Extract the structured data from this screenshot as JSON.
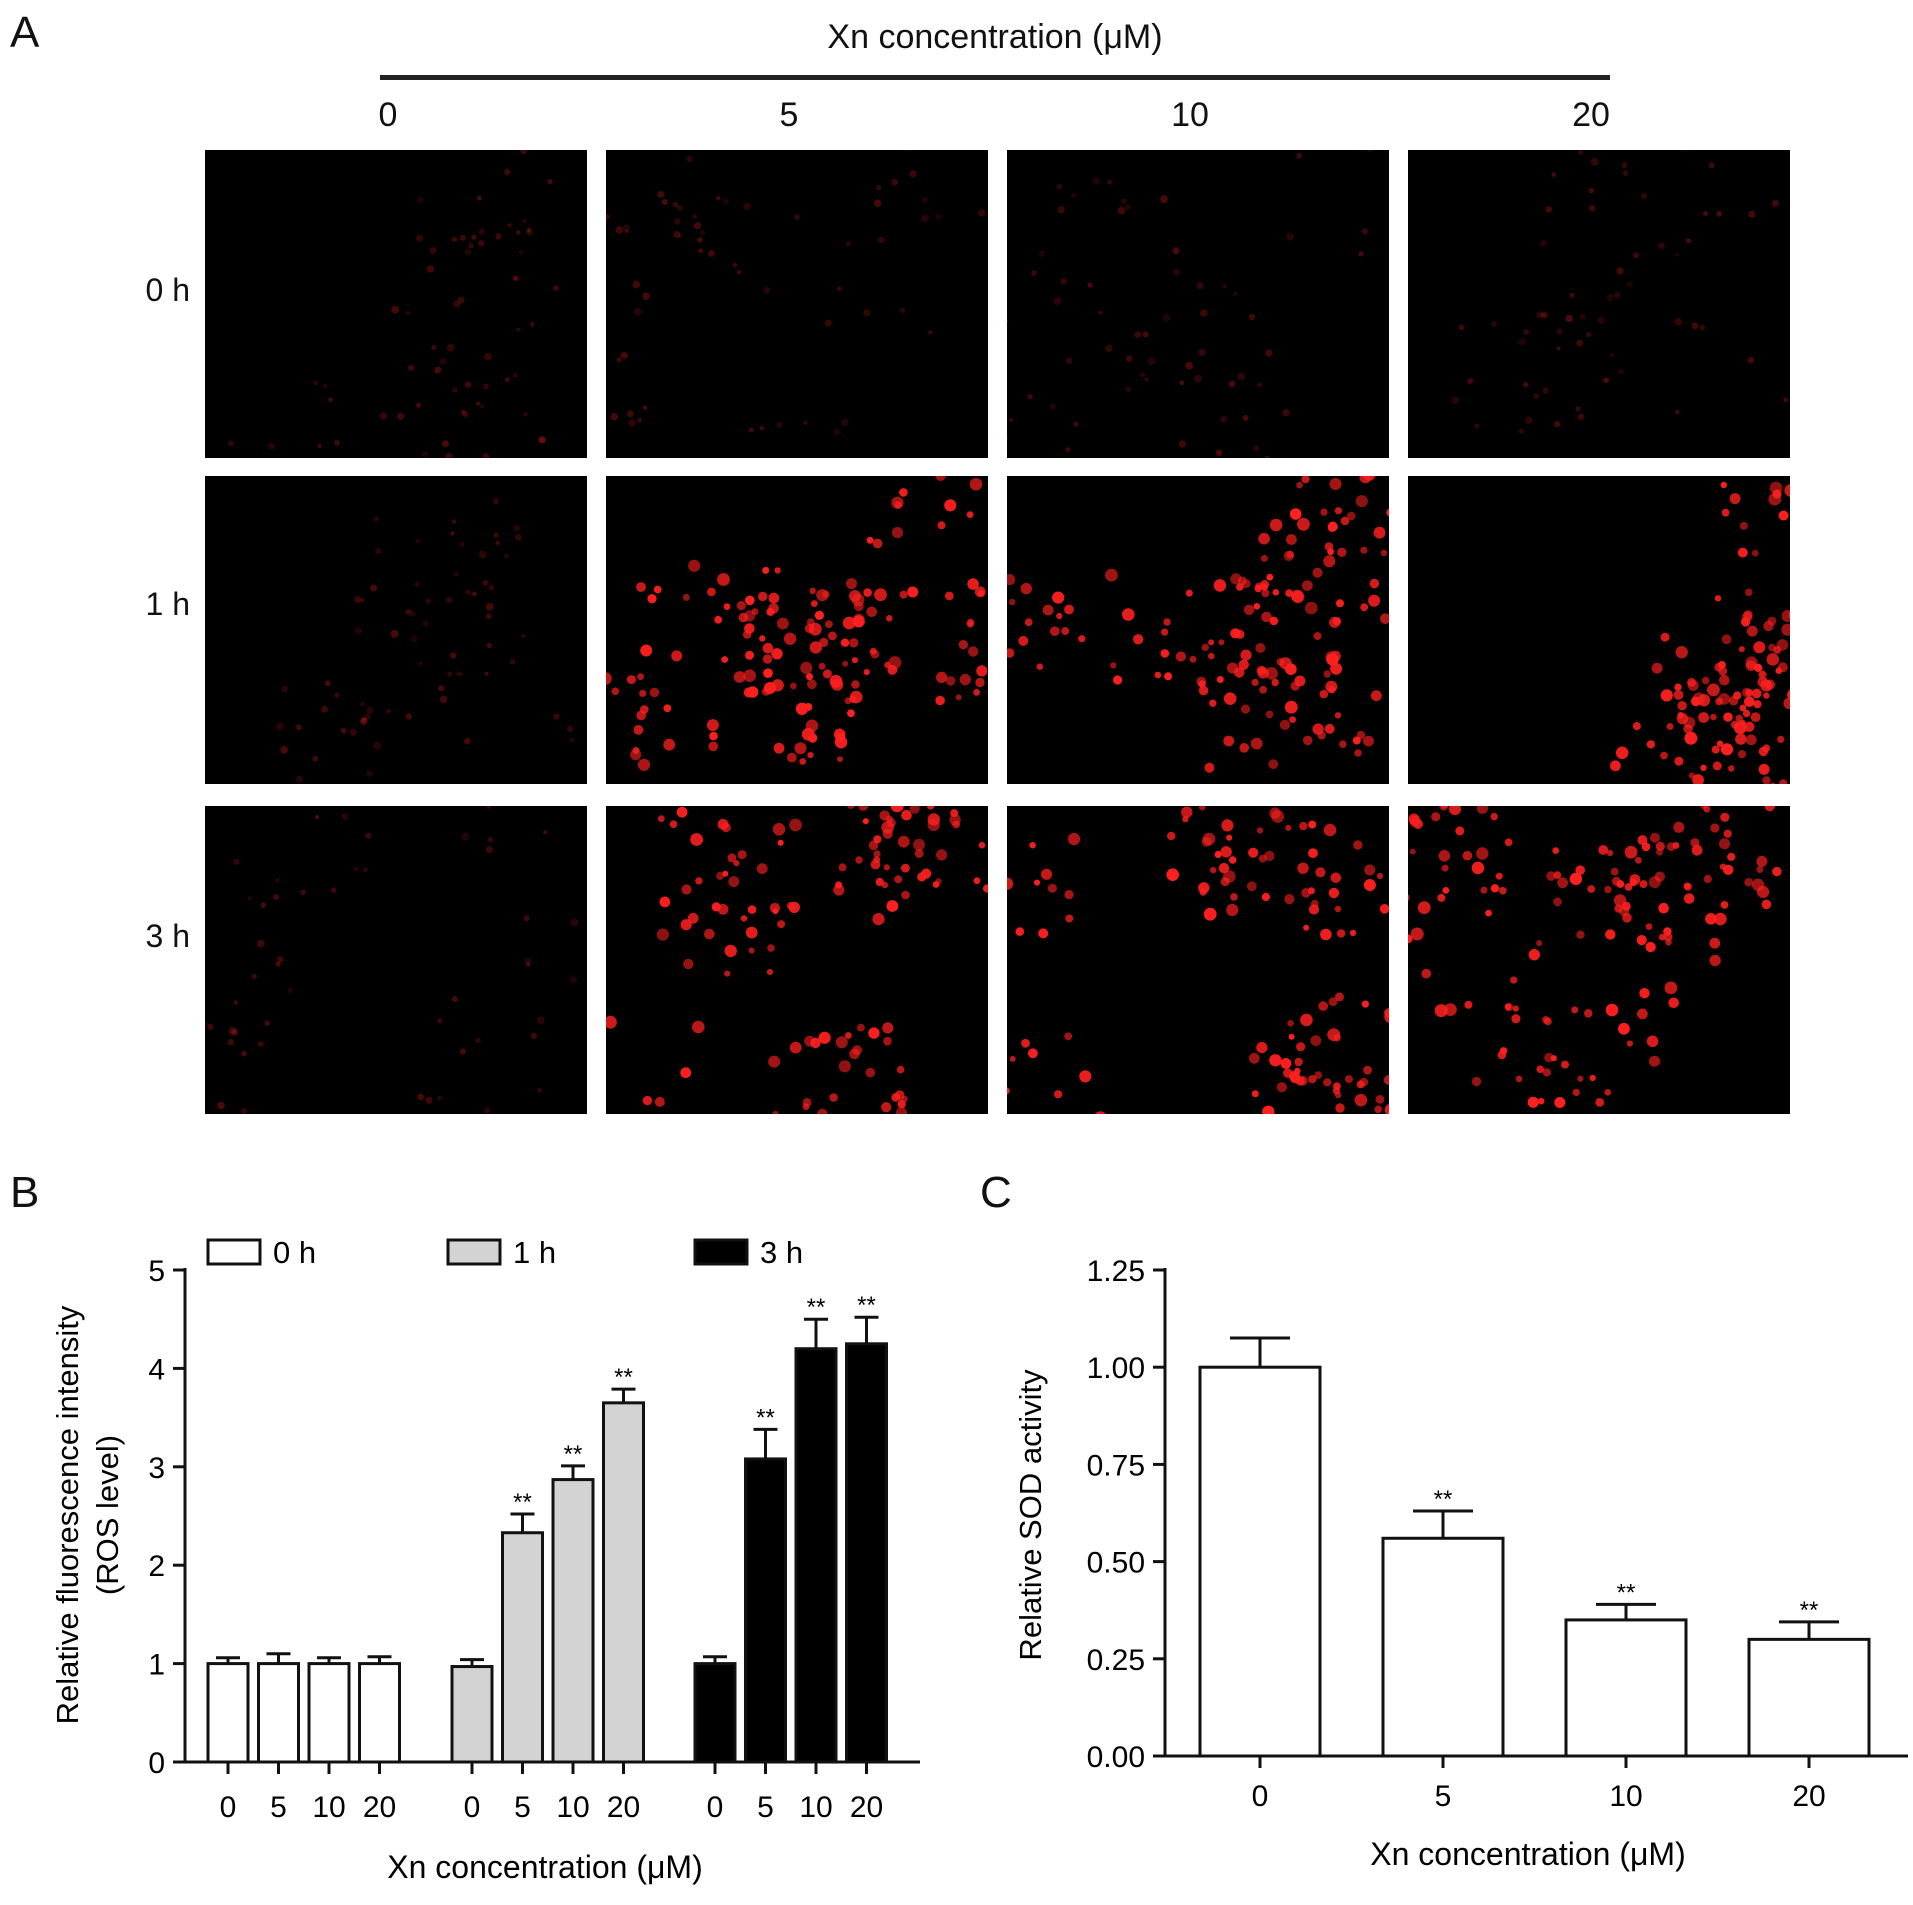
{
  "panel_a": {
    "letter": "A",
    "title": "Xn concentration (μM)",
    "columns": [
      "0",
      "5",
      "10",
      "20"
    ],
    "rows": [
      "0 h",
      "1 h",
      "3 h"
    ],
    "cell_color": "#ff2020",
    "dot_density": [
      [
        0.12,
        0.12,
        0.12,
        0.14
      ],
      [
        0.12,
        0.85,
        0.95,
        1.0
      ],
      [
        0.2,
        0.9,
        0.95,
        1.0
      ]
    ]
  },
  "chart_data": [
    {
      "panel": "B",
      "type": "bar",
      "ylabel": "Relative fluorescence intensity\n(ROS level)",
      "xlabel": "Xn concentration (μM)",
      "ylim": [
        0,
        5
      ],
      "yticks": [
        "0",
        "1",
        "2",
        "3",
        "4",
        "5"
      ],
      "groups": [
        "0 h",
        "1 h",
        "3 h"
      ],
      "categories": [
        "0",
        "5",
        "10",
        "20"
      ],
      "series": [
        {
          "name": "0 h",
          "color": "#ffffff",
          "values": [
            1.0,
            1.0,
            1.0,
            1.0
          ],
          "errors": [
            0.06,
            0.1,
            0.06,
            0.07
          ],
          "sig": [
            "",
            "",
            "",
            ""
          ]
        },
        {
          "name": "1 h",
          "color": "#d3d3d3",
          "values": [
            0.97,
            2.33,
            2.87,
            3.65
          ],
          "errors": [
            0.07,
            0.19,
            0.14,
            0.14
          ],
          "sig": [
            "",
            "**",
            "**",
            "**"
          ]
        },
        {
          "name": "3 h",
          "color": "#000000",
          "values": [
            1.0,
            3.08,
            4.2,
            4.25
          ],
          "errors": [
            0.07,
            0.3,
            0.3,
            0.27
          ],
          "sig": [
            "",
            "**",
            "**",
            "**"
          ]
        }
      ],
      "legend_position": "top"
    },
    {
      "panel": "C",
      "type": "bar",
      "ylabel": "Relative SOD activity",
      "xlabel": "Xn concentration (μM)",
      "ylim": [
        0,
        1.25
      ],
      "yticks": [
        "0.00",
        "0.25",
        "0.50",
        "0.75",
        "1.00",
        "1.25"
      ],
      "categories": [
        "0",
        "5",
        "10",
        "20"
      ],
      "values": [
        1.0,
        0.56,
        0.35,
        0.3
      ],
      "errors": [
        0.075,
        0.07,
        0.04,
        0.045
      ],
      "sig": [
        "",
        "**",
        "**",
        "**"
      ],
      "color": "#ffffff"
    }
  ],
  "panel_b": {
    "letter": "B"
  },
  "panel_c": {
    "letter": "C"
  }
}
